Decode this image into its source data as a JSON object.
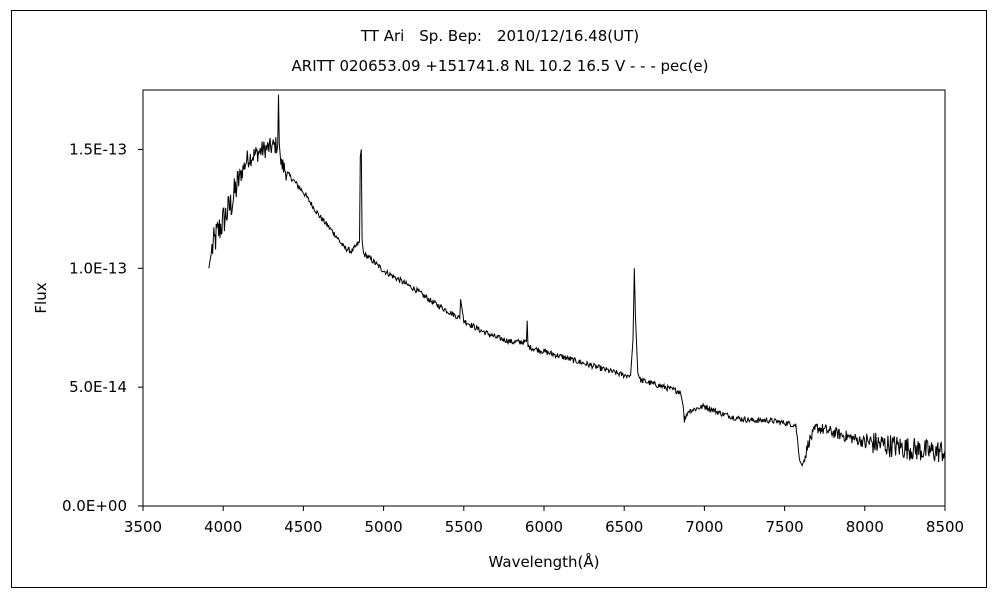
{
  "chart_data": {
    "type": "line",
    "title": "TT Ari　Sp. Bep:　2010/12/16.48(UT)",
    "subtitle": "ARITT 020653.09 +151741.8 NL 10.2 16.5 V - - - pec(e)",
    "xlabel": "Wavelength(Å)",
    "ylabel": "Flux",
    "xlim": [
      3500,
      8500
    ],
    "ylim": [
      0,
      1.75e-13
    ],
    "xticks": [
      3500,
      4000,
      4500,
      5000,
      5500,
      6000,
      6500,
      7000,
      7500,
      8000,
      8500
    ],
    "xtick_labels": [
      "3500",
      "4000",
      "4500",
      "5000",
      "5500",
      "6000",
      "6500",
      "7000",
      "7500",
      "8000",
      "8500"
    ],
    "yticks": [
      0,
      5e-14,
      1e-13,
      1.5e-13
    ],
    "ytick_labels": [
      "0.0E+00",
      "5.0E-14",
      "1.0E-13",
      "1.5E-13"
    ],
    "grid": false,
    "legend": "none",
    "series": [
      {
        "color": "#000000",
        "x": [
          3910,
          3930,
          3960,
          4000,
          4050,
          4100,
          4150,
          4200,
          4250,
          4300,
          4340,
          4345,
          4350,
          4360,
          4400,
          4450,
          4500,
          4550,
          4600,
          4650,
          4700,
          4750,
          4800,
          4850,
          4855,
          4861,
          4866,
          4875,
          4900,
          4950,
          5000,
          5100,
          5200,
          5300,
          5400,
          5475,
          5480,
          5500,
          5600,
          5700,
          5800,
          5890,
          5895,
          5900,
          6000,
          6100,
          6200,
          6300,
          6400,
          6500,
          6540,
          6555,
          6563,
          6570,
          6585,
          6600,
          6650,
          6700,
          6800,
          6850,
          6868,
          6875,
          6900,
          7000,
          7100,
          7200,
          7300,
          7400,
          7500,
          7570,
          7595,
          7610,
          7625,
          7650,
          7700,
          7800,
          7900,
          8000,
          8100,
          8200,
          8300,
          8400,
          8500
        ],
        "y": [
          1e-13,
          1.08e-13,
          1.14e-13,
          1.2e-13,
          1.27e-13,
          1.38e-13,
          1.46e-13,
          1.48e-13,
          1.5e-13,
          1.51e-13,
          1.52e-13,
          1.73e-13,
          1.52e-13,
          1.44e-13,
          1.4e-13,
          1.36e-13,
          1.32e-13,
          1.27e-13,
          1.22e-13,
          1.18e-13,
          1.14e-13,
          1.09e-13,
          1.07e-13,
          1.11e-13,
          1.47e-13,
          1.5e-13,
          1.12e-13,
          1.06e-13,
          1.05e-13,
          1.02e-13,
          9.9e-14,
          9.5e-14,
          9.1e-14,
          8.6e-14,
          8.2e-14,
          7.9e-14,
          8.7e-14,
          7.8e-14,
          7.4e-14,
          7.1e-14,
          6.9e-14,
          6.9e-14,
          7.8e-14,
          6.7e-14,
          6.5e-14,
          6.3e-14,
          6.1e-14,
          5.9e-14,
          5.7e-14,
          5.5e-14,
          5.5e-14,
          7e-14,
          1e-13,
          8e-14,
          5.6e-14,
          5.3e-14,
          5.2e-14,
          5.1e-14,
          4.9e-14,
          4.8e-14,
          4.2e-14,
          3.6e-14,
          4e-14,
          4.2e-14,
          3.9e-14,
          3.7e-14,
          3.6e-14,
          3.6e-14,
          3.5e-14,
          3.4e-14,
          1.9e-14,
          1.7e-14,
          2e-14,
          2.7e-14,
          3.3e-14,
          3.1e-14,
          2.9e-14,
          2.7e-14,
          2.6e-14,
          2.5e-14,
          2.4e-14,
          2.3e-14,
          2.3e-14
        ]
      }
    ]
  }
}
